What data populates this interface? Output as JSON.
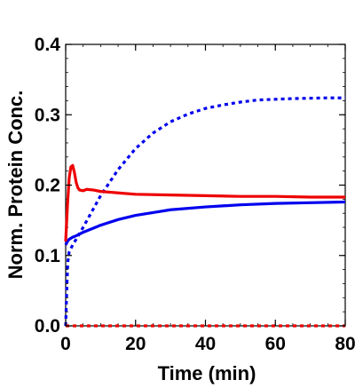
{
  "chart_data": {
    "type": "line",
    "title": "",
    "xlabel": "Time (min)",
    "ylabel": "Norm. Protein Conc.",
    "xlim": [
      0,
      80
    ],
    "ylim": [
      0,
      0.4
    ],
    "x_ticks": [
      0,
      20,
      40,
      60,
      80
    ],
    "y_ticks": [
      0.0,
      0.1,
      0.2,
      0.3,
      0.4
    ],
    "x_tick_labels": [
      "0",
      "20",
      "40",
      "60",
      "80"
    ],
    "y_tick_labels": [
      "0.0",
      "0.1",
      "0.2",
      "0.3",
      "0.4"
    ],
    "grid": false,
    "legend": "none",
    "series": [
      {
        "color": "#0000ee",
        "style": "dotted",
        "points": [
          [
            0,
            0
          ],
          [
            0.3,
            0.05
          ],
          [
            0.6,
            0.09
          ],
          [
            1,
            0.105
          ],
          [
            2,
            0.115
          ],
          [
            3,
            0.123
          ],
          [
            5,
            0.14
          ],
          [
            7,
            0.158
          ],
          [
            10,
            0.185
          ],
          [
            15,
            0.222
          ],
          [
            20,
            0.252
          ],
          [
            25,
            0.274
          ],
          [
            30,
            0.29
          ],
          [
            35,
            0.301
          ],
          [
            40,
            0.309
          ],
          [
            45,
            0.314
          ],
          [
            50,
            0.318
          ],
          [
            55,
            0.321
          ],
          [
            60,
            0.322
          ],
          [
            65,
            0.323
          ],
          [
            70,
            0.3235
          ],
          [
            75,
            0.324
          ],
          [
            80,
            0.324
          ]
        ]
      },
      {
        "color": "#0000ee",
        "style": "solid",
        "points": [
          [
            0,
            0.115
          ],
          [
            0.5,
            0.12
          ],
          [
            1,
            0.123
          ],
          [
            2,
            0.126
          ],
          [
            3,
            0.128
          ],
          [
            5,
            0.133
          ],
          [
            8,
            0.139
          ],
          [
            10,
            0.143
          ],
          [
            15,
            0.151
          ],
          [
            20,
            0.157
          ],
          [
            25,
            0.161
          ],
          [
            30,
            0.165
          ],
          [
            40,
            0.169
          ],
          [
            50,
            0.172
          ],
          [
            60,
            0.174
          ],
          [
            70,
            0.175
          ],
          [
            80,
            0.176
          ]
        ]
      },
      {
        "color": "#ee0000",
        "style": "solid",
        "points": [
          [
            0,
            0.12
          ],
          [
            0.5,
            0.17
          ],
          [
            1,
            0.21
          ],
          [
            1.5,
            0.226
          ],
          [
            2,
            0.228
          ],
          [
            2.5,
            0.218
          ],
          [
            3,
            0.204
          ],
          [
            3.5,
            0.196
          ],
          [
            4,
            0.193
          ],
          [
            5,
            0.192
          ],
          [
            6,
            0.194
          ],
          [
            8,
            0.193
          ],
          [
            10,
            0.191
          ],
          [
            15,
            0.189
          ],
          [
            20,
            0.187
          ],
          [
            30,
            0.186
          ],
          [
            40,
            0.185
          ],
          [
            50,
            0.184
          ],
          [
            60,
            0.184
          ],
          [
            70,
            0.183
          ],
          [
            80,
            0.183
          ]
        ]
      },
      {
        "color": "#ee0000",
        "style": "dotted",
        "points": [
          [
            0,
            0
          ],
          [
            80,
            0
          ]
        ]
      }
    ]
  }
}
